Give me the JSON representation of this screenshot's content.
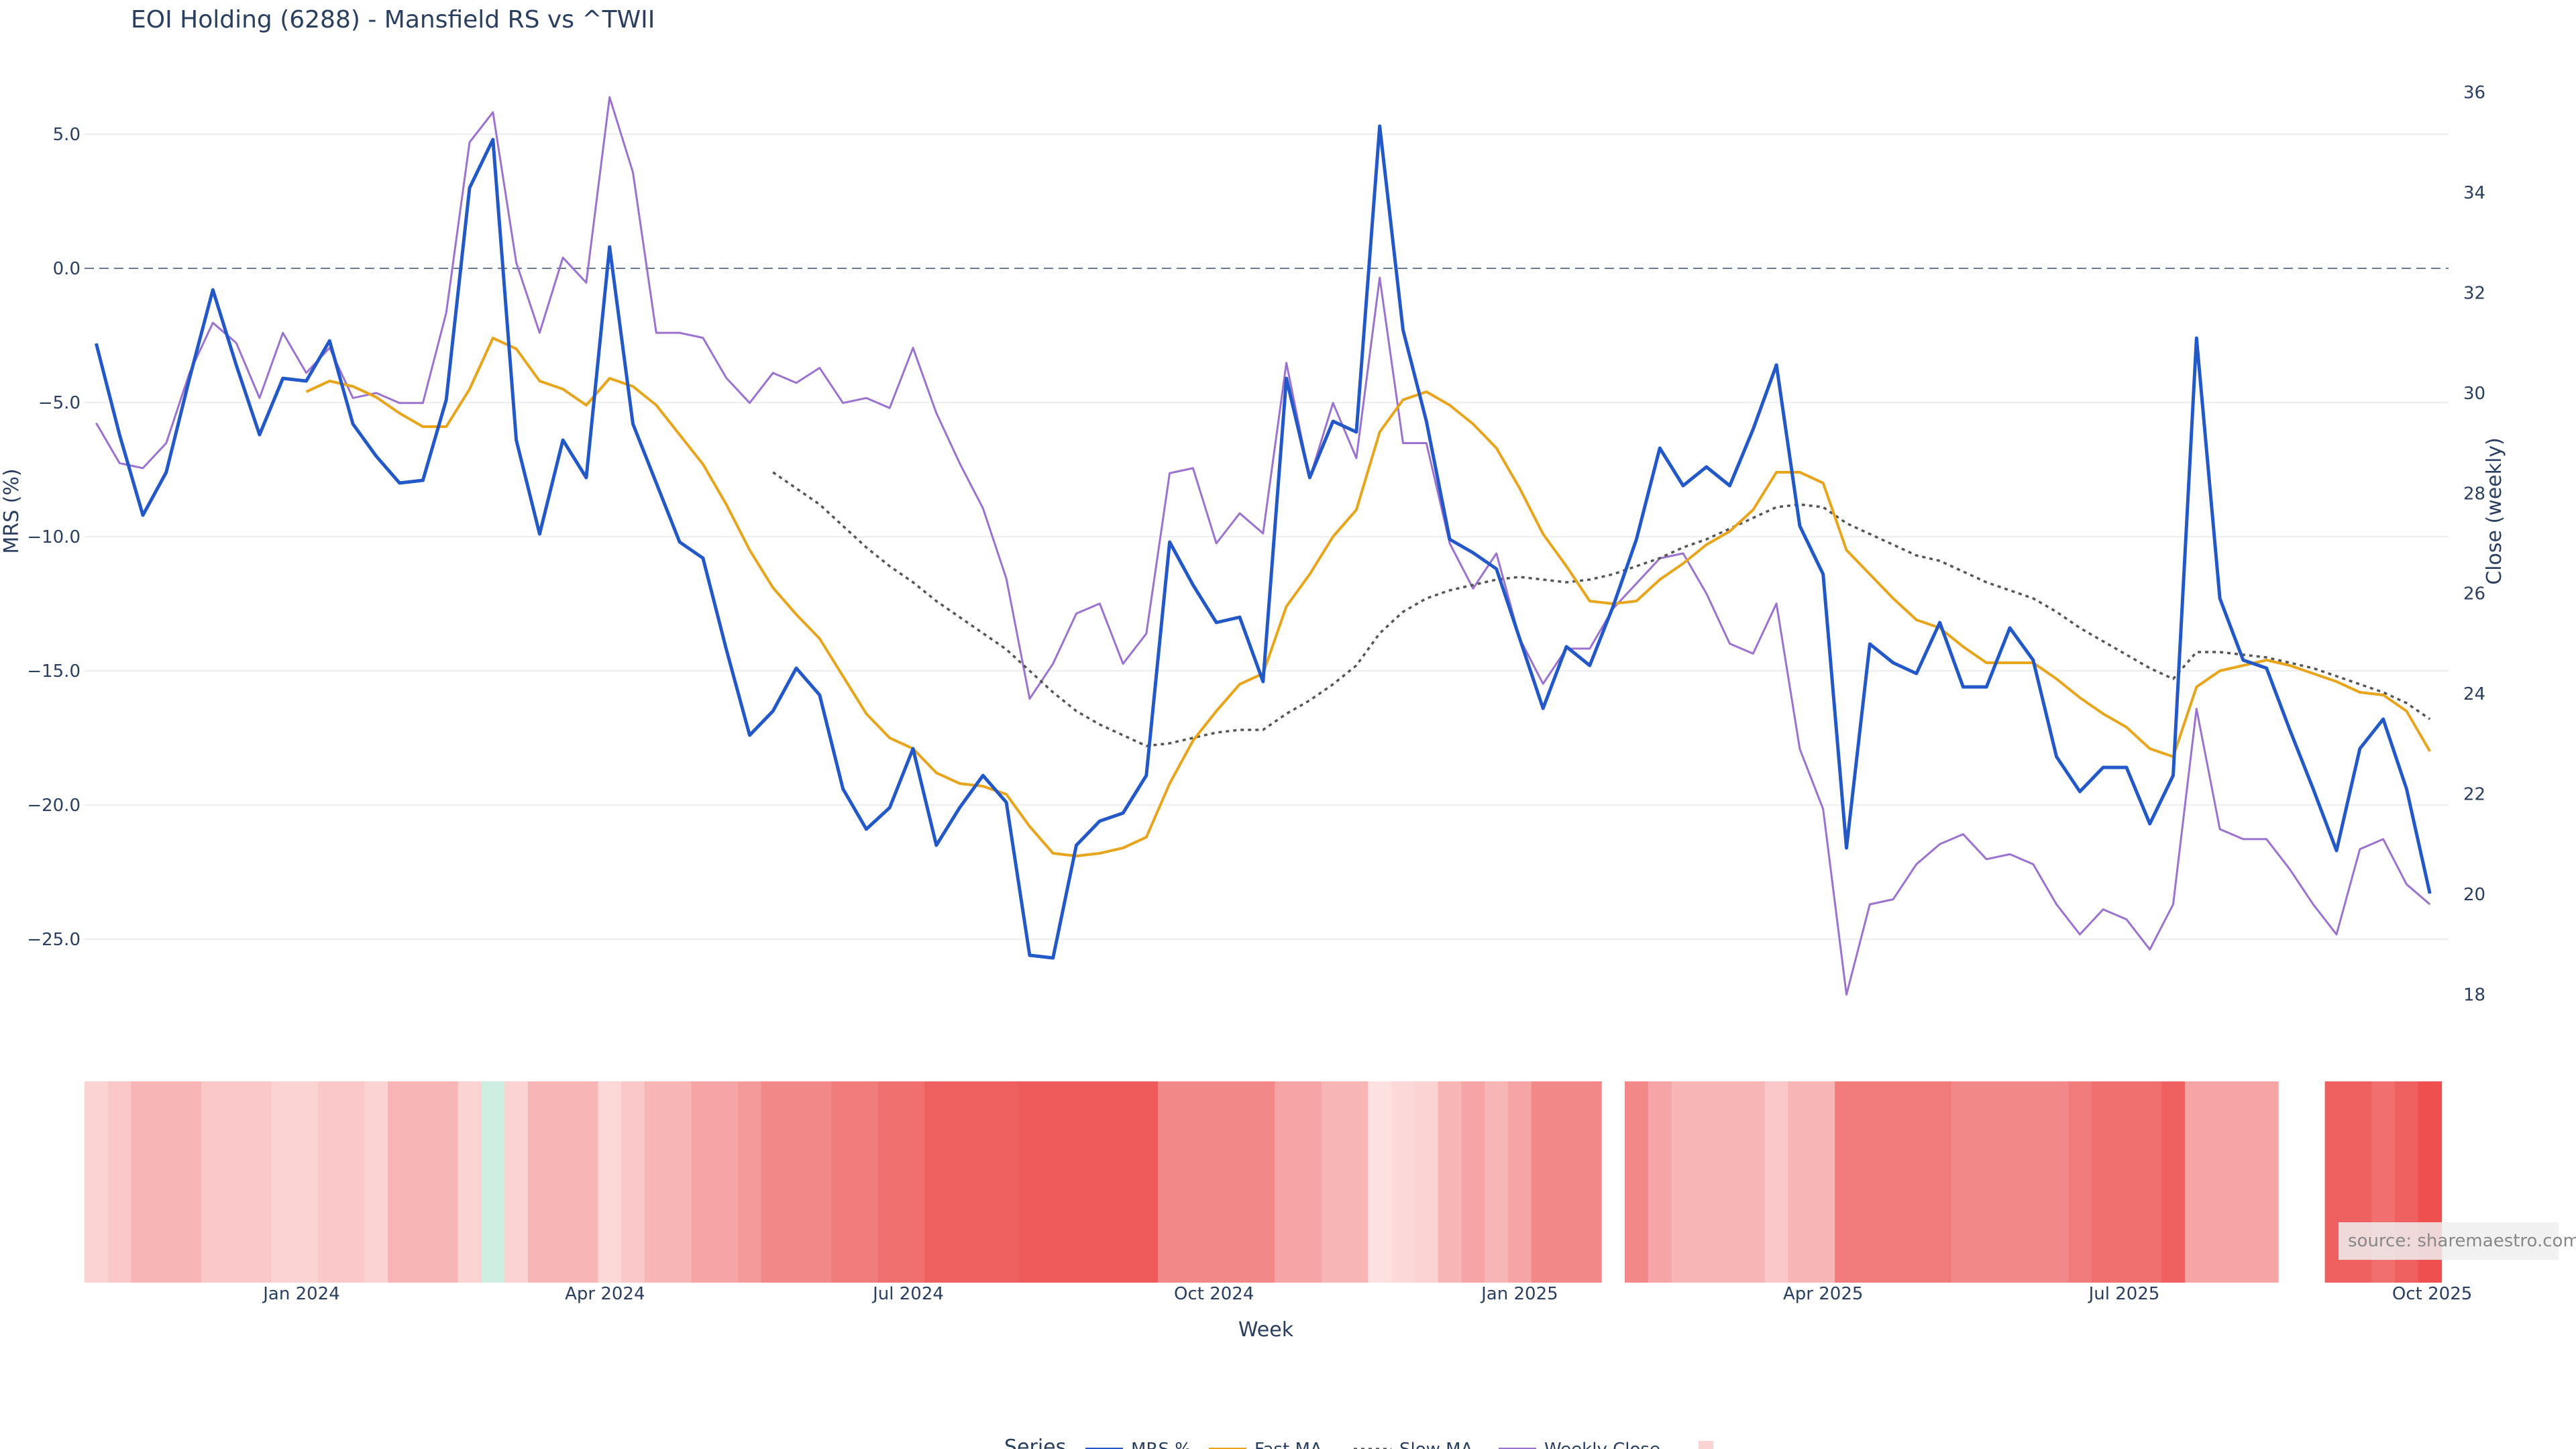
{
  "chart_data": {
    "type": "line",
    "title": "EOI Holding (6288) - Mansfield RS vs ^TWII",
    "xlabel": "Week",
    "ylabel": "MRS (%)",
    "y2label": "Close (weekly)",
    "ylim": [
      -28,
      7.5
    ],
    "y2lim": [
      17.5,
      36.5
    ],
    "y_ticks": [
      5.0,
      0.0,
      -5.0,
      -10.0,
      -15.0,
      -20.0,
      -25.0
    ],
    "y_tick_labels": [
      "5.0",
      "0.0",
      "−5.0",
      "−10.0",
      "−15.0",
      "−20.0",
      "−25.0"
    ],
    "y2_ticks": [
      36,
      34,
      32,
      30,
      28,
      26,
      24,
      22,
      20,
      18
    ],
    "y2_tick_labels": [
      "36",
      "34",
      "32",
      "30",
      "28",
      "26",
      "24",
      "22",
      "20",
      "18"
    ],
    "x_ticks": [
      {
        "week": 8.8,
        "label": "Jan 2024"
      },
      {
        "week": 21.8,
        "label": "Apr 2024"
      },
      {
        "week": 34.8,
        "label": "Jul 2024"
      },
      {
        "week": 47.9,
        "label": "Oct 2024"
      },
      {
        "week": 61.0,
        "label": "Jan 2025"
      },
      {
        "week": 74.0,
        "label": "Apr 2025"
      },
      {
        "week": 86.9,
        "label": "Jul 2025"
      },
      {
        "week": 100.1,
        "label": "Oct 2025"
      }
    ],
    "x_range": [
      -0.5,
      100.8
    ],
    "zero_line": 0,
    "series": [
      {
        "name": "MRS %",
        "axis": "y",
        "color": "#2358c8",
        "style": "solid",
        "values": [
          -2.8,
          -6.2,
          -9.2,
          -7.6,
          -4.1,
          -0.8,
          -3.6,
          -6.2,
          -4.1,
          -4.2,
          -2.7,
          -5.8,
          -7.0,
          -8.0,
          -7.9,
          -4.9,
          3.0,
          4.8,
          -6.4,
          -9.9,
          -6.4,
          -7.8,
          0.8,
          -5.8,
          -8.0,
          -10.2,
          -10.8,
          -14.2,
          -17.4,
          -16.5,
          -14.9,
          -15.9,
          -19.4,
          -20.9,
          -20.1,
          -17.9,
          -21.5,
          -20.1,
          -18.9,
          -19.9,
          -25.6,
          -25.7,
          -21.5,
          -20.6,
          -20.3,
          -18.9,
          -10.2,
          -11.8,
          -13.2,
          -13.0,
          -15.4,
          -4.1,
          -7.8,
          -5.7,
          -6.1,
          5.3,
          -2.3,
          -5.7,
          -10.1,
          -10.6,
          -11.2,
          -13.8,
          -16.4,
          -14.1,
          -14.8,
          -12.6,
          -10.1,
          -6.7,
          -8.1,
          -7.4,
          -8.1,
          -6.0,
          -3.6,
          -9.6,
          -11.4,
          -21.6,
          -14.0,
          -14.7,
          -15.1,
          -13.2,
          -15.6,
          -15.6,
          -13.4,
          -14.6,
          -18.2,
          -19.5,
          -18.6,
          -18.6,
          -20.7,
          -18.9,
          -2.6,
          -12.3,
          -14.6,
          -14.9,
          -17.2,
          -19.4,
          -21.7,
          -17.9,
          -16.8,
          -19.4,
          -23.3
        ]
      },
      {
        "name": "Fast MA",
        "axis": "y",
        "color": "#e8a41a",
        "style": "solid",
        "values": [
          null,
          null,
          null,
          null,
          null,
          null,
          null,
          null,
          null,
          -4.6,
          -4.2,
          -4.4,
          -4.8,
          -5.4,
          -5.9,
          -5.9,
          -4.5,
          -2.6,
          -3.0,
          -4.2,
          -4.5,
          -5.1,
          -4.1,
          -4.4,
          -5.1,
          -6.2,
          -7.3,
          -8.8,
          -10.5,
          -11.9,
          -12.9,
          -13.8,
          -15.2,
          -16.6,
          -17.5,
          -17.9,
          -18.8,
          -19.2,
          -19.3,
          -19.6,
          -20.8,
          -21.8,
          -21.9,
          -21.8,
          -21.6,
          -21.2,
          -19.2,
          -17.6,
          -16.5,
          -15.5,
          -15.1,
          -12.6,
          -11.4,
          -10.0,
          -9.0,
          -6.1,
          -4.9,
          -4.6,
          -5.1,
          -5.8,
          -6.7,
          -8.2,
          -9.9,
          -11.1,
          -12.4,
          -12.5,
          -12.4,
          -11.6,
          -11.0,
          -10.3,
          -9.8,
          -9.0,
          -7.6,
          -7.6,
          -8.0,
          -10.5,
          -11.4,
          -12.3,
          -13.1,
          -13.4,
          -14.1,
          -14.7,
          -14.7,
          -14.7,
          -15.3,
          -16.0,
          -16.6,
          -17.1,
          -17.9,
          -18.2,
          -15.6,
          -15.0,
          -14.8,
          -14.6,
          -14.8,
          -15.1,
          -15.4,
          -15.8,
          -15.9,
          -16.5,
          -18.0
        ]
      },
      {
        "name": "Slow MA",
        "axis": "y",
        "color": "#555555",
        "style": "dotted",
        "values": [
          null,
          null,
          null,
          null,
          null,
          null,
          null,
          null,
          null,
          null,
          null,
          null,
          null,
          null,
          null,
          null,
          null,
          null,
          null,
          null,
          null,
          null,
          null,
          null,
          null,
          null,
          null,
          null,
          null,
          -7.6,
          -8.2,
          -8.8,
          -9.6,
          -10.4,
          -11.1,
          -11.7,
          -12.4,
          -13.0,
          -13.6,
          -14.2,
          -15.0,
          -15.8,
          -16.5,
          -17.0,
          -17.4,
          -17.8,
          -17.7,
          -17.5,
          -17.3,
          -17.2,
          -17.2,
          -16.6,
          -16.1,
          -15.5,
          -14.8,
          -13.6,
          -12.8,
          -12.3,
          -12.0,
          -11.8,
          -11.6,
          -11.5,
          -11.6,
          -11.7,
          -11.6,
          -11.4,
          -11.1,
          -10.8,
          -10.4,
          -10.1,
          -9.7,
          -9.3,
          -8.9,
          -8.8,
          -8.9,
          -9.5,
          -9.9,
          -10.3,
          -10.7,
          -10.9,
          -11.3,
          -11.7,
          -12.0,
          -12.3,
          -12.8,
          -13.4,
          -13.9,
          -14.4,
          -14.9,
          -15.3,
          -14.3,
          -14.3,
          -14.4,
          -14.5,
          -14.7,
          -14.9,
          -15.2,
          -15.5,
          -15.8,
          -16.2,
          -16.8
        ]
      },
      {
        "name": "Weekly Close",
        "axis": "y2",
        "color": "#9b72cf",
        "style": "solid",
        "values": [
          29.4,
          28.6,
          28.5,
          29.0,
          30.4,
          31.4,
          31.0,
          29.9,
          31.2,
          30.4,
          30.9,
          29.9,
          30.0,
          29.8,
          29.8,
          31.6,
          35.0,
          35.6,
          32.6,
          31.2,
          32.7,
          32.2,
          35.9,
          34.4,
          31.2,
          31.2,
          31.1,
          30.3,
          29.8,
          30.4,
          30.2,
          30.5,
          29.8,
          29.9,
          29.7,
          30.9,
          29.6,
          28.6,
          27.7,
          26.3,
          23.9,
          24.6,
          25.6,
          25.8,
          24.6,
          25.2,
          28.4,
          28.5,
          27.0,
          27.6,
          27.2,
          30.6,
          28.3,
          29.8,
          28.7,
          32.3,
          29.0,
          29.0,
          27.0,
          26.1,
          26.8,
          25.1,
          24.2,
          24.9,
          24.9,
          25.7,
          26.2,
          26.7,
          26.8,
          26.0,
          25.0,
          24.8,
          25.8,
          22.9,
          21.7,
          18.0,
          19.8,
          19.9,
          20.6,
          21.0,
          21.2,
          20.7,
          20.8,
          20.6,
          19.8,
          19.2,
          19.7,
          19.5,
          18.9,
          19.8,
          23.7,
          21.3,
          21.1,
          21.1,
          20.5,
          19.8,
          19.2,
          20.9,
          21.1,
          20.2,
          19.8
        ]
      }
    ],
    "heatmap_strip": {
      "description": "Weekly RS color band (red = negative, green = positive); blank weeks have no data",
      "colors": [
        "#fbd3d3",
        "#fac8c8",
        "#f7b5b5",
        "#f7b5b5",
        "#f7b5b5",
        "#fac8c8",
        "#fac8c8",
        "#fac8c8",
        "#fbd3d3",
        "#fbd3d3",
        "#fac8c8",
        "#fac8c8",
        "#fbd3d3",
        "#f7b5b5",
        "#f7b5b5",
        "#f7b5b5",
        "#fbd3d3",
        "#cdeee0",
        "#fbd3d3",
        "#f7b5b5",
        "#f7b5b5",
        "#f7b5b5",
        "#fcd8d8",
        "#fac8c8",
        "#f7b5b5",
        "#f7b5b5",
        "#f5a5a5",
        "#f5a5a5",
        "#f49a9a",
        "#f28888",
        "#f28888",
        "#f28888",
        "#f17c7c",
        "#f17c7c",
        "#f07070",
        "#f07070",
        "#ef6060",
        "#ef6060",
        "#ef6060",
        "#ef6060",
        "#ef5a5a",
        "#ef5a5a",
        "#ef5a5a",
        "#ef5a5a",
        "#ef5a5a",
        "#ef5a5a",
        "#f28888",
        "#f28888",
        "#f28888",
        "#f28888",
        "#f28888",
        "#f5a5a5",
        "#f5a5a5",
        "#f7b5b5",
        "#f7b5b5",
        "#fde0e0",
        "#fcd8d8",
        "#fbd3d3",
        "#f7b5b5",
        "#f5a5a5",
        "#f7b5b5",
        "#f5a5a5",
        "#f28888",
        "#f28888",
        "#f28888",
        null,
        "#f28888",
        "#f5a5a5",
        "#f7b5b5",
        "#f7b5b5",
        "#f7b5b5",
        "#f7b5b5",
        "#fac8c8",
        "#f7b5b5",
        "#f7b5b5",
        "#f17c7c",
        "#f17c7c",
        "#f17c7c",
        "#f17c7c",
        "#f17c7c",
        "#f28888",
        "#f28888",
        "#f28888",
        "#f28888",
        "#f28888",
        "#f17c7c",
        "#f07070",
        "#f07070",
        "#f07070",
        "#ef6060",
        "#f5a5a5",
        "#f5a5a5",
        "#f5a5a5",
        "#f5a5a5",
        null,
        null,
        "#ef6060",
        "#ef6060",
        "#f07070",
        "#ef6060",
        "#ef4f4f"
      ]
    }
  },
  "legend": {
    "title": "Series",
    "items": [
      {
        "label": "MRS %",
        "color": "#2358c8",
        "style": "solid"
      },
      {
        "label": "Fast MA",
        "color": "#e8a41a",
        "style": "solid"
      },
      {
        "label": "Slow MA",
        "color": "#555555",
        "style": "dotted"
      },
      {
        "label": "Weekly Close",
        "color": "#9b72cf",
        "style": "solid"
      },
      {
        "label": "",
        "color": "#fbd3d3",
        "style": "box"
      }
    ]
  },
  "source_label": "source: sharemaestro.com"
}
